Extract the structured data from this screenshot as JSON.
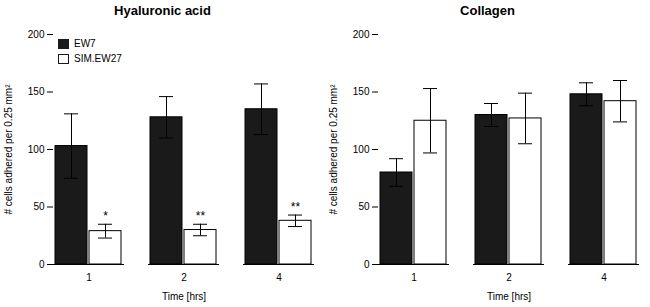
{
  "chart_data": [
    {
      "type": "bar",
      "title": "Hyaluronic acid",
      "xlabel": "Time [hrs]",
      "ylabel": "# cells adhered per 0.25 mm²",
      "categories": [
        "1",
        "2",
        "4"
      ],
      "series": [
        {
          "name": "EW7",
          "color": "#1a1a1a",
          "values": [
            103,
            128,
            135
          ],
          "errors": [
            28,
            18,
            22
          ]
        },
        {
          "name": "SIM.EW27",
          "color": "#ffffff",
          "values": [
            29,
            30,
            38
          ],
          "errors": [
            6,
            5,
            5
          ]
        }
      ],
      "ylim": [
        0,
        200
      ],
      "yticks": [
        0,
        50,
        100,
        150,
        200
      ],
      "legend": "upper left",
      "annotations": [
        {
          "text": "*",
          "category": "1",
          "series": "SIM.EW27"
        },
        {
          "text": "**",
          "category": "2",
          "series": "SIM.EW27"
        },
        {
          "text": "**",
          "category": "4",
          "series": "SIM.EW27"
        }
      ]
    },
    {
      "type": "bar",
      "title": "Collagen",
      "xlabel": "Time [hrs]",
      "ylabel": "# cells adhered per 0.25 mm²",
      "categories": [
        "1",
        "2",
        "4"
      ],
      "series": [
        {
          "name": "EW7",
          "color": "#1a1a1a",
          "values": [
            80,
            130,
            148
          ],
          "errors": [
            12,
            10,
            10
          ]
        },
        {
          "name": "SIM.EW27",
          "color": "#ffffff",
          "values": [
            125,
            127,
            142
          ],
          "errors": [
            28,
            22,
            18
          ]
        }
      ],
      "ylim": [
        0,
        200
      ],
      "yticks": [
        0,
        50,
        100,
        150,
        200
      ]
    }
  ]
}
